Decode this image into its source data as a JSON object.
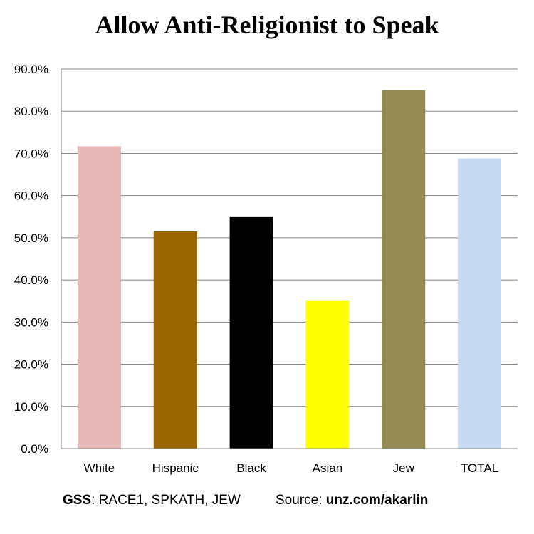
{
  "chart_data": {
    "type": "bar",
    "title": "Allow Anti-Religionist to Speak",
    "categories": [
      "White",
      "Hispanic",
      "Black",
      "Asian",
      "Jew",
      "TOTAL"
    ],
    "values": [
      71.7,
      51.5,
      54.9,
      35.0,
      85.0,
      68.8
    ],
    "colors": [
      "#E6B8B7",
      "#996600",
      "#000000",
      "#FFFF00",
      "#948A54",
      "#C6D9F1"
    ],
    "ylim": [
      0,
      90
    ],
    "yticks": [
      "0.0%",
      "10.0%",
      "20.0%",
      "30.0%",
      "40.0%",
      "50.0%",
      "60.0%",
      "70.0%",
      "80.0%",
      "90.0%"
    ],
    "ytick_values": [
      0,
      10,
      20,
      30,
      40,
      50,
      60,
      70,
      80,
      90
    ],
    "grid": true,
    "xlabel": "",
    "ylabel": ""
  },
  "footer": {
    "gss_label": "GSS",
    "gss_vars": ": RACE1, SPKATH, JEW",
    "source_label": "Source: ",
    "source_url": "unz.com/akarlin"
  }
}
